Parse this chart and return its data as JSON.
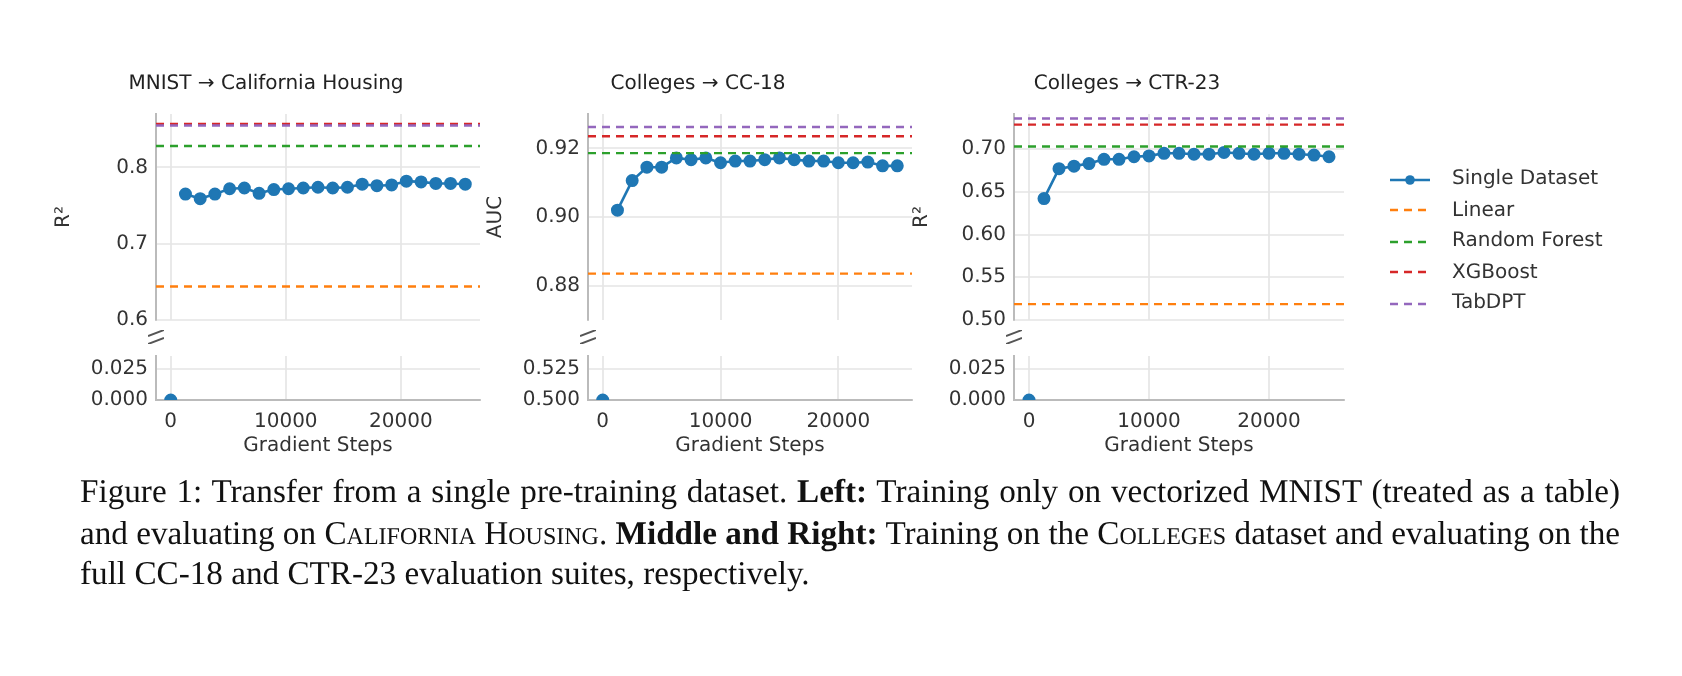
{
  "chart_data": [
    {
      "type": "line",
      "title": "MNIST → California Housing",
      "ylabel": "R²",
      "x": [
        1280,
        2560,
        3840,
        5120,
        6400,
        7680,
        8960,
        10240,
        11520,
        12800,
        14080,
        15360,
        16640,
        17920,
        19200,
        20480,
        21760,
        23040,
        24320,
        25600
      ],
      "series": [
        {
          "color": "#1f77b4",
          "values": [
            0.765,
            0.759,
            0.765,
            0.772,
            0.773,
            0.766,
            0.771,
            0.772,
            0.773,
            0.774,
            0.773,
            0.774,
            0.778,
            0.776,
            0.777,
            0.782,
            0.781,
            0.779,
            0.779,
            0.778
          ]
        }
      ],
      "ref_lines": [
        {
          "axis": "y",
          "value": 0.644,
          "color": "#ff7f0e",
          "line_style": "dashed"
        },
        {
          "axis": "y",
          "value": 0.828,
          "color": "#2ca02c",
          "line_style": "dashed"
        },
        {
          "axis": "y",
          "value": 0.857,
          "color": "#d62728",
          "line_style": "dashed"
        },
        {
          "axis": "y",
          "value": 0.855,
          "color": "#9467bd",
          "line_style": "dashed"
        }
      ],
      "marker": "circle",
      "line_style": "solid",
      "xlim": [
        -1280,
        26880
      ],
      "xticks": [
        0,
        10000,
        20000
      ],
      "ylim": [
        0.6,
        0.87
      ],
      "yticks": [
        {
          "value": 0.6,
          "label": "0.6"
        },
        {
          "value": 0.7,
          "label": "0.7"
        },
        {
          "value": 0.8,
          "label": "0.8"
        }
      ],
      "grid": true,
      "tick_labels": "y",
      "annotations": [
        "Figure 1: Transfer from a single pre-training dataset.",
        "Left:",
        "Training only on vectorized MNIST (treated as a table) and evaluating on",
        "California Housing.",
        "Middle and Right:",
        "Training on the",
        "Colleges",
        "dataset and evaluating on the full CC-18 and CTR-23 evaluation suites, respectively."
      ]
    },
    {
      "type": "line",
      "xlabel": "Gradient Steps",
      "x": [
        0
      ],
      "series": [
        {
          "color": "#1f77b4",
          "values": [
            0
          ]
        }
      ],
      "marker": "circle",
      "line_style": "solid",
      "xlim": [
        -1280,
        26880
      ],
      "xticks": [
        0,
        10000,
        20000
      ],
      "ylim": [
        0,
        0.035
      ],
      "yticks": [
        {
          "value": 0,
          "label": "0.000"
        },
        {
          "value": 0.025,
          "label": "0.025"
        }
      ],
      "grid": true
    },
    {
      "type": "line",
      "title": "Colleges → CC-18",
      "ylabel": "AUC",
      "x": [
        1250,
        2500,
        3750,
        5000,
        6250,
        7500,
        8750,
        10000,
        11250,
        12500,
        13750,
        15000,
        16250,
        17500,
        18750,
        20000,
        21250,
        22500,
        23750,
        25000
      ],
      "series": [
        {
          "color": "#1f77b4",
          "values": [
            0.902,
            0.9106,
            0.9145,
            0.9145,
            0.9172,
            0.9167,
            0.9172,
            0.9158,
            0.9163,
            0.9163,
            0.9167,
            0.9172,
            0.9167,
            0.9163,
            0.9163,
            0.9158,
            0.9158,
            0.916,
            0.9149,
            0.9149
          ]
        }
      ],
      "ref_lines": [
        {
          "axis": "y",
          "value": 0.8835,
          "color": "#ff7f0e",
          "line_style": "dashed"
        },
        {
          "axis": "y",
          "value": 0.9186,
          "color": "#2ca02c",
          "line_style": "dashed"
        },
        {
          "axis": "y",
          "value": 0.9235,
          "color": "#d62728",
          "line_style": "dashed"
        },
        {
          "axis": "y",
          "value": 0.9262,
          "color": "#9467bd",
          "line_style": "dashed"
        }
      ],
      "marker": "circle",
      "line_style": "solid",
      "xlim": [
        -1250,
        26250
      ],
      "xticks": [
        0,
        10000,
        20000
      ],
      "ylim": [
        0.87,
        0.93
      ],
      "yticks": [
        0.88,
        {
          "value": 0.9,
          "label": "0.90"
        },
        0.92
      ],
      "grid": true,
      "tick_labels": "y"
    },
    {
      "type": "line",
      "xlabel": "Gradient Steps",
      "x": [
        0
      ],
      "series": [
        {
          "color": "#1f77b4",
          "values": [
            0.5
          ]
        }
      ],
      "marker": "circle",
      "line_style": "solid",
      "xlim": [
        -1250,
        26250
      ],
      "xticks": [
        0,
        10000,
        20000
      ],
      "ylim": [
        0.5,
        0.535
      ],
      "yticks": [
        {
          "value": 0.5,
          "label": "0.500"
        },
        0.525
      ],
      "grid": true
    },
    {
      "type": "line",
      "title": "Colleges → CTR-23",
      "ylabel": "R²",
      "x": [
        1250,
        2500,
        3750,
        5000,
        6250,
        7500,
        8750,
        10000,
        11250,
        12500,
        13750,
        15000,
        16250,
        17500,
        18750,
        20000,
        21250,
        22500,
        23750,
        25000
      ],
      "series": [
        {
          "name": "Single Dataset",
          "color": "#1f77b4",
          "values": [
            0.642,
            0.677,
            0.68,
            0.683,
            0.688,
            0.688,
            0.691,
            0.692,
            0.695,
            0.695,
            0.694,
            0.694,
            0.696,
            0.695,
            0.694,
            0.695,
            0.695,
            0.694,
            0.693,
            0.691
          ]
        }
      ],
      "ref_lines": [
        {
          "axis": "y",
          "value": 0.5186,
          "label": "Linear",
          "color": "#ff7f0e",
          "line_style": "dashed"
        },
        {
          "axis": "y",
          "value": 0.7029,
          "label": "Random Forest",
          "color": "#2ca02c",
          "line_style": "dashed"
        },
        {
          "axis": "y",
          "value": 0.7286,
          "label": "XGBoost",
          "color": "#d62728",
          "line_style": "dashed"
        },
        {
          "axis": "y",
          "value": 0.7357,
          "label": "TabDPT",
          "color": "#9467bd",
          "line_style": "dashed"
        }
      ],
      "marker": "circle",
      "line_style": "solid",
      "xlim": [
        -1250,
        26250
      ],
      "xticks": [
        0,
        10000,
        20000
      ],
      "ylim": [
        0.5,
        0.741
      ],
      "yticks": [
        {
          "value": 0.5,
          "label": "0.50"
        },
        0.55,
        {
          "value": 0.6,
          "label": "0.60"
        },
        0.65,
        {
          "value": 0.7,
          "label": "0.70"
        }
      ],
      "grid": true,
      "tick_labels": "y",
      "legend": "right"
    },
    {
      "type": "line",
      "xlabel": "Gradient Steps",
      "x": [
        0
      ],
      "series": [
        {
          "color": "#1f77b4",
          "values": [
            0
          ]
        }
      ],
      "marker": "circle",
      "line_style": "solid",
      "xlim": [
        -1250,
        26250
      ],
      "xticks": [
        0,
        10000,
        20000
      ],
      "ylim": [
        0,
        0.035
      ],
      "yticks": [
        {
          "value": 0,
          "label": "0.000"
        },
        {
          "value": 0.025,
          "label": "0.025"
        }
      ],
      "grid": true
    }
  ]
}
